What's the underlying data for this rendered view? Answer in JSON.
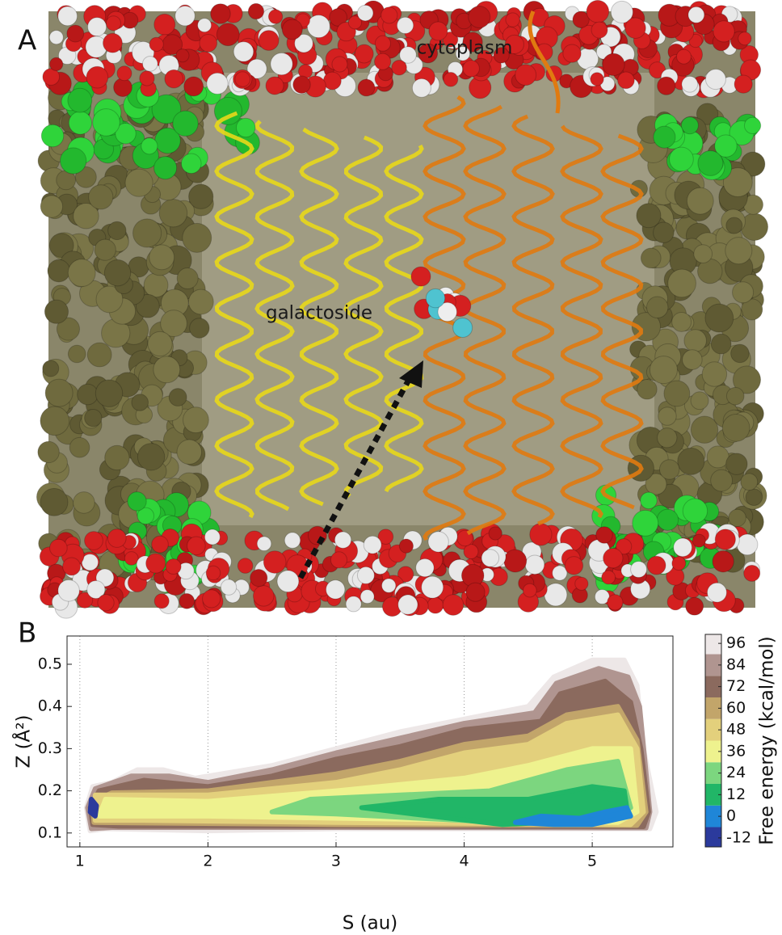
{
  "panel_a": {
    "label": "A",
    "annotations": [
      "cytoplasm",
      "galactoside"
    ]
  },
  "chart_data": {
    "type": "contour",
    "panel_label": "B",
    "xlabel": "S (au)",
    "ylabel": "Z (Å²)",
    "xlim": [
      0.9,
      5.63
    ],
    "xticks": [
      1,
      2,
      3,
      4,
      5
    ],
    "ylim": [
      0.067,
      0.567
    ],
    "yticks": [
      0.1,
      0.2,
      0.3,
      0.4,
      0.5
    ],
    "grid": true,
    "colorbar": {
      "label": "Free energy (kcal/mol)",
      "lim": [
        -17,
        101
      ],
      "ticks": [
        -12,
        0,
        12,
        24,
        36,
        48,
        60,
        72,
        84,
        96
      ],
      "colors": [
        "#2b3a9c",
        "#1f86d8",
        "#21b667",
        "#7cd67f",
        "#eef28e",
        "#e3d07c",
        "#c2a56a",
        "#8b6a5e",
        "#b09590",
        "#ede7e7"
      ]
    },
    "contours": [
      {
        "level": 96,
        "color": "#ede7e7",
        "points": [
          [
            1.08,
            0.105
          ],
          [
            1.05,
            0.16
          ],
          [
            1.1,
            0.21
          ],
          [
            1.25,
            0.22
          ],
          [
            1.45,
            0.25
          ],
          [
            1.65,
            0.25
          ],
          [
            1.9,
            0.23
          ],
          [
            2.5,
            0.26
          ],
          [
            3.0,
            0.3
          ],
          [
            3.5,
            0.34
          ],
          [
            4.0,
            0.37
          ],
          [
            4.5,
            0.4
          ],
          [
            4.7,
            0.47
          ],
          [
            5.0,
            0.51
          ],
          [
            5.25,
            0.51
          ],
          [
            5.35,
            0.45
          ],
          [
            5.4,
            0.3
          ],
          [
            5.5,
            0.15
          ],
          [
            5.45,
            0.11
          ],
          [
            4.5,
            0.11
          ],
          [
            3.0,
            0.11
          ],
          [
            2.0,
            0.105
          ],
          [
            1.2,
            0.11
          ]
        ]
      },
      {
        "level": 84,
        "color": "#b09590",
        "points": [
          [
            1.09,
            0.11
          ],
          [
            1.06,
            0.16
          ],
          [
            1.12,
            0.205
          ],
          [
            1.4,
            0.235
          ],
          [
            1.7,
            0.235
          ],
          [
            2.0,
            0.22
          ],
          [
            2.5,
            0.25
          ],
          [
            3.0,
            0.29
          ],
          [
            3.5,
            0.325
          ],
          [
            4.0,
            0.36
          ],
          [
            4.55,
            0.385
          ],
          [
            4.72,
            0.455
          ],
          [
            5.05,
            0.49
          ],
          [
            5.28,
            0.47
          ],
          [
            5.37,
            0.4
          ],
          [
            5.45,
            0.15
          ],
          [
            5.42,
            0.112
          ],
          [
            3.0,
            0.113
          ],
          [
            1.25,
            0.113
          ]
        ]
      },
      {
        "level": 72,
        "color": "#8b6a5e",
        "points": [
          [
            1.1,
            0.12
          ],
          [
            1.08,
            0.16
          ],
          [
            1.15,
            0.2
          ],
          [
            1.5,
            0.225
          ],
          [
            2.0,
            0.21
          ],
          [
            2.5,
            0.235
          ],
          [
            3.0,
            0.275
          ],
          [
            3.5,
            0.305
          ],
          [
            4.0,
            0.345
          ],
          [
            4.6,
            0.365
          ],
          [
            4.75,
            0.43
          ],
          [
            5.1,
            0.46
          ],
          [
            5.3,
            0.41
          ],
          [
            5.38,
            0.3
          ],
          [
            5.44,
            0.15
          ],
          [
            5.4,
            0.115
          ],
          [
            3.0,
            0.116
          ],
          [
            1.3,
            0.116
          ]
        ]
      },
      {
        "level": 60,
        "color": "#c2a56a",
        "points": [
          [
            1.11,
            0.125
          ],
          [
            1.1,
            0.175
          ],
          [
            1.25,
            0.195
          ],
          [
            2.0,
            0.2
          ],
          [
            3.0,
            0.24
          ],
          [
            3.5,
            0.27
          ],
          [
            4.0,
            0.31
          ],
          [
            4.5,
            0.33
          ],
          [
            4.8,
            0.38
          ],
          [
            5.2,
            0.4
          ],
          [
            5.35,
            0.32
          ],
          [
            5.42,
            0.15
          ],
          [
            5.35,
            0.118
          ],
          [
            3.0,
            0.12
          ],
          [
            1.4,
            0.124
          ]
        ]
      },
      {
        "level": 48,
        "color": "#e3d07c",
        "points": [
          [
            1.12,
            0.13
          ],
          [
            1.12,
            0.19
          ],
          [
            1.3,
            0.19
          ],
          [
            2.0,
            0.19
          ],
          [
            3.0,
            0.22
          ],
          [
            3.5,
            0.25
          ],
          [
            4.0,
            0.29
          ],
          [
            4.5,
            0.31
          ],
          [
            4.8,
            0.36
          ],
          [
            5.2,
            0.38
          ],
          [
            5.35,
            0.3
          ],
          [
            5.4,
            0.15
          ],
          [
            5.3,
            0.12
          ],
          [
            3.0,
            0.125
          ],
          [
            1.5,
            0.13
          ]
        ]
      },
      {
        "level": 36,
        "color": "#eef28e",
        "points": [
          [
            1.15,
            0.14
          ],
          [
            1.2,
            0.18
          ],
          [
            2.0,
            0.175
          ],
          [
            3.0,
            0.2
          ],
          [
            4.0,
            0.23
          ],
          [
            4.5,
            0.26
          ],
          [
            5.0,
            0.3
          ],
          [
            5.3,
            0.3
          ],
          [
            5.35,
            0.15
          ],
          [
            5.2,
            0.125
          ],
          [
            3.0,
            0.135
          ],
          [
            2.0,
            0.14
          ]
        ]
      },
      {
        "level": 24,
        "color": "#7cd67f",
        "points": [
          [
            2.5,
            0.15
          ],
          [
            2.8,
            0.18
          ],
          [
            3.5,
            0.19
          ],
          [
            4.2,
            0.2
          ],
          [
            4.8,
            0.25
          ],
          [
            5.2,
            0.27
          ],
          [
            5.3,
            0.16
          ],
          [
            5.1,
            0.13
          ],
          [
            4.3,
            0.125
          ],
          [
            3.0,
            0.145
          ]
        ]
      },
      {
        "level": 12,
        "color": "#21b667",
        "points": [
          [
            3.2,
            0.16
          ],
          [
            3.8,
            0.18
          ],
          [
            4.5,
            0.18
          ],
          [
            5.0,
            0.21
          ],
          [
            5.25,
            0.2
          ],
          [
            5.28,
            0.14
          ],
          [
            5.0,
            0.13
          ],
          [
            4.3,
            0.12
          ],
          [
            3.6,
            0.145
          ]
        ]
      },
      {
        "level": 0,
        "color": "#1f86d8",
        "points": [
          [
            4.4,
            0.125
          ],
          [
            4.6,
            0.14
          ],
          [
            4.9,
            0.135
          ],
          [
            5.1,
            0.15
          ],
          [
            5.27,
            0.16
          ],
          [
            5.3,
            0.14
          ],
          [
            5.0,
            0.12
          ],
          [
            4.7,
            0.12
          ]
        ]
      },
      {
        "level": -12,
        "color": "#2b3a9c",
        "points": [
          [
            1.08,
            0.15
          ],
          [
            1.09,
            0.18
          ],
          [
            1.13,
            0.165
          ],
          [
            1.12,
            0.14
          ]
        ]
      }
    ]
  }
}
